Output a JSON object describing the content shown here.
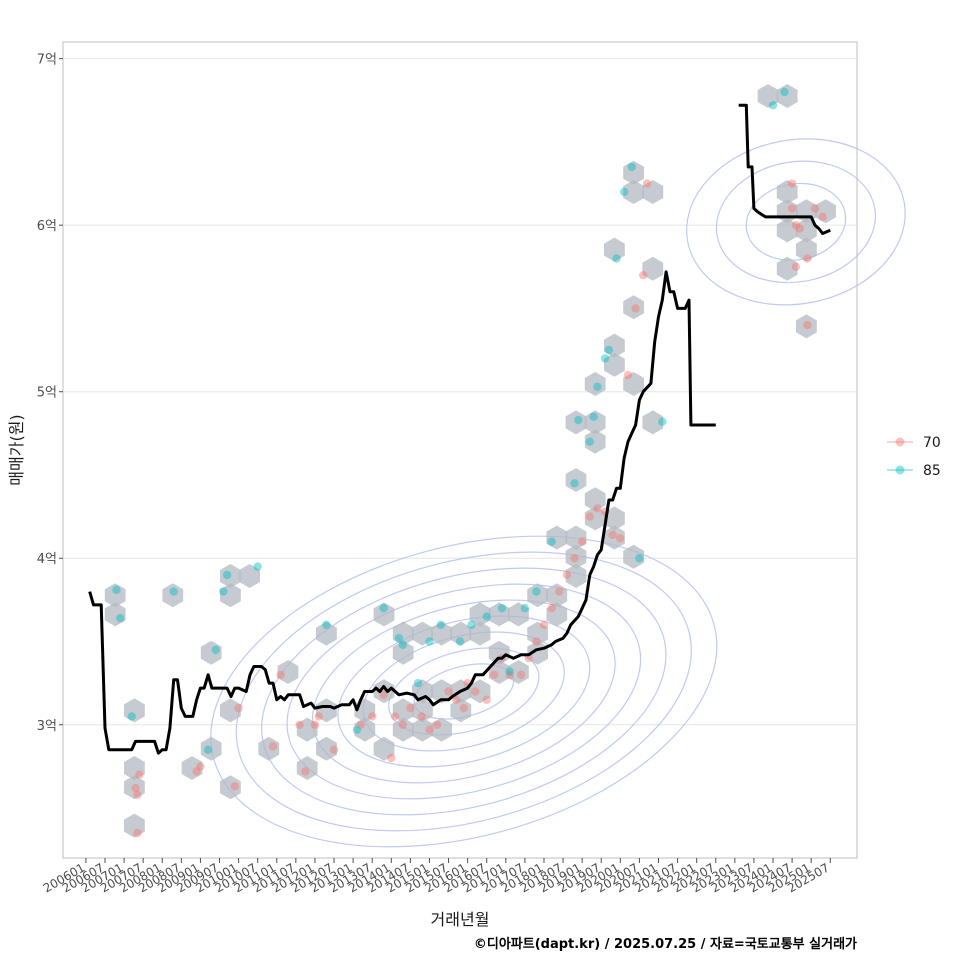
{
  "chart_data": {
    "type": "scatter",
    "xlabel": "거래년월",
    "ylabel": "매매가(원)",
    "caption": "©디아파트(dapt.kr) / 2025.07.25 / 자료=국토교통부 실거래가",
    "y_ticks": [
      {
        "value": 3,
        "label": "3억"
      },
      {
        "value": 4,
        "label": "4억"
      },
      {
        "value": 5,
        "label": "5억"
      },
      {
        "value": 6,
        "label": "6억"
      },
      {
        "value": 7,
        "label": "7억"
      }
    ],
    "x_ticks": [
      "200601",
      "200607",
      "200701",
      "200707",
      "200801",
      "200807",
      "200901",
      "200907",
      "201001",
      "201007",
      "201101",
      "201107",
      "201201",
      "201207",
      "201301",
      "201307",
      "201401",
      "201407",
      "201501",
      "201507",
      "201601",
      "201607",
      "201701",
      "201707",
      "201801",
      "201807",
      "201901",
      "201907",
      "202001",
      "202007",
      "202101",
      "202107",
      "202201",
      "202207",
      "202301",
      "202307",
      "202401",
      "202407",
      "202501",
      "202507"
    ],
    "xlim": [
      2005.4,
      2026.2
    ],
    "ylim": [
      2.2,
      7.1
    ],
    "grid": true,
    "legend": {
      "position": "right",
      "entries": [
        {
          "label": "70",
          "color": "#F8766D"
        },
        {
          "label": "85",
          "color": "#00BFC4"
        }
      ]
    },
    "series": [
      {
        "name": "70",
        "color": "#F8766D",
        "points": [
          [
            2007.3,
            2.62
          ],
          [
            2007.35,
            2.58
          ],
          [
            2007.4,
            2.7
          ],
          [
            2007.35,
            2.35
          ],
          [
            2008.9,
            2.72
          ],
          [
            2009.0,
            2.75
          ],
          [
            2009.9,
            2.63
          ],
          [
            2010.0,
            3.1
          ],
          [
            2010.9,
            2.87
          ],
          [
            2011.1,
            3.3
          ],
          [
            2011.6,
            3.0
          ],
          [
            2011.75,
            2.72
          ],
          [
            2012.0,
            3.0
          ],
          [
            2012.1,
            3.05
          ],
          [
            2012.5,
            2.85
          ],
          [
            2013.2,
            3.0
          ],
          [
            2013.5,
            3.05
          ],
          [
            2013.8,
            3.18
          ],
          [
            2014.0,
            2.8
          ],
          [
            2014.1,
            3.05
          ],
          [
            2014.3,
            3.0
          ],
          [
            2014.5,
            3.1
          ],
          [
            2014.8,
            3.05
          ],
          [
            2015.0,
            2.97
          ],
          [
            2015.2,
            3.0
          ],
          [
            2015.5,
            3.2
          ],
          [
            2015.7,
            3.15
          ],
          [
            2015.9,
            3.1
          ],
          [
            2016.0,
            3.25
          ],
          [
            2016.2,
            3.2
          ],
          [
            2016.5,
            3.15
          ],
          [
            2016.7,
            3.3
          ],
          [
            2016.9,
            3.4
          ],
          [
            2017.1,
            3.3
          ],
          [
            2017.4,
            3.3
          ],
          [
            2017.6,
            3.4
          ],
          [
            2017.8,
            3.5
          ],
          [
            2018.0,
            3.6
          ],
          [
            2018.2,
            3.7
          ],
          [
            2018.4,
            3.8
          ],
          [
            2018.6,
            3.9
          ],
          [
            2018.8,
            4.0
          ],
          [
            2019.0,
            4.1
          ],
          [
            2019.2,
            4.25
          ],
          [
            2019.4,
            4.3
          ],
          [
            2019.6,
            4.28
          ],
          [
            2019.8,
            4.14
          ],
          [
            2020.0,
            4.12
          ],
          [
            2020.2,
            5.1
          ],
          [
            2020.4,
            5.5
          ],
          [
            2020.6,
            5.7
          ],
          [
            2020.7,
            6.25
          ],
          [
            2024.5,
            6.25
          ],
          [
            2024.5,
            6.1
          ],
          [
            2024.6,
            5.75
          ],
          [
            2024.9,
            5.8
          ],
          [
            2025.1,
            6.1
          ],
          [
            2025.3,
            6.05
          ],
          [
            2024.6,
            6.0
          ],
          [
            2024.7,
            5.98
          ],
          [
            2024.9,
            5.4
          ]
        ]
      },
      {
        "name": "85",
        "color": "#00BFC4",
        "points": [
          [
            2006.8,
            3.81
          ],
          [
            2006.9,
            3.64
          ],
          [
            2007.2,
            3.05
          ],
          [
            2008.3,
            3.8
          ],
          [
            2009.2,
            2.85
          ],
          [
            2009.4,
            3.45
          ],
          [
            2009.6,
            3.8
          ],
          [
            2009.7,
            3.9
          ],
          [
            2010.5,
            3.95
          ],
          [
            2012.3,
            3.6
          ],
          [
            2013.1,
            2.97
          ],
          [
            2013.8,
            3.7
          ],
          [
            2014.2,
            3.52
          ],
          [
            2014.3,
            3.48
          ],
          [
            2014.7,
            3.25
          ],
          [
            2015.0,
            3.5
          ],
          [
            2015.3,
            3.6
          ],
          [
            2015.8,
            3.5
          ],
          [
            2016.1,
            3.6
          ],
          [
            2016.5,
            3.65
          ],
          [
            2016.9,
            3.7
          ],
          [
            2017.1,
            3.32
          ],
          [
            2017.5,
            3.7
          ],
          [
            2017.8,
            3.8
          ],
          [
            2018.2,
            4.1
          ],
          [
            2018.8,
            4.45
          ],
          [
            2018.9,
            4.83
          ],
          [
            2019.2,
            4.7
          ],
          [
            2019.3,
            4.85
          ],
          [
            2019.4,
            5.03
          ],
          [
            2019.6,
            5.2
          ],
          [
            2019.7,
            5.25
          ],
          [
            2019.9,
            5.8
          ],
          [
            2020.1,
            6.2
          ],
          [
            2020.3,
            6.35
          ],
          [
            2020.5,
            4.0
          ],
          [
            2021.1,
            4.82
          ],
          [
            2024.0,
            6.72
          ],
          [
            2024.3,
            6.8
          ]
        ]
      },
      {
        "name": "",
        "type": "line",
        "color": "#000000",
        "points": [
          [
            2006.1,
            3.8
          ],
          [
            2006.2,
            3.72
          ],
          [
            2006.4,
            3.72
          ],
          [
            2006.5,
            2.98
          ],
          [
            2006.6,
            2.85
          ],
          [
            2006.8,
            2.85
          ],
          [
            2007.0,
            2.85
          ],
          [
            2007.2,
            2.85
          ],
          [
            2007.3,
            2.9
          ],
          [
            2007.6,
            2.9
          ],
          [
            2007.8,
            2.9
          ],
          [
            2007.9,
            2.83
          ],
          [
            2008.0,
            2.85
          ],
          [
            2008.1,
            2.85
          ],
          [
            2008.2,
            2.98
          ],
          [
            2008.3,
            3.27
          ],
          [
            2008.4,
            3.27
          ],
          [
            2008.5,
            3.1
          ],
          [
            2008.6,
            3.05
          ],
          [
            2008.8,
            3.05
          ],
          [
            2008.9,
            3.15
          ],
          [
            2009.0,
            3.22
          ],
          [
            2009.1,
            3.22
          ],
          [
            2009.2,
            3.3
          ],
          [
            2009.3,
            3.22
          ],
          [
            2009.5,
            3.22
          ],
          [
            2009.7,
            3.22
          ],
          [
            2009.8,
            3.17
          ],
          [
            2009.9,
            3.22
          ],
          [
            2010.0,
            3.22
          ],
          [
            2010.2,
            3.2
          ],
          [
            2010.3,
            3.3
          ],
          [
            2010.4,
            3.35
          ],
          [
            2010.6,
            3.35
          ],
          [
            2010.7,
            3.33
          ],
          [
            2010.8,
            3.25
          ],
          [
            2010.9,
            3.25
          ],
          [
            2011.0,
            3.15
          ],
          [
            2011.1,
            3.17
          ],
          [
            2011.2,
            3.15
          ],
          [
            2011.3,
            3.18
          ],
          [
            2011.5,
            3.18
          ],
          [
            2011.6,
            3.18
          ],
          [
            2011.7,
            3.11
          ],
          [
            2011.8,
            3.12
          ],
          [
            2011.9,
            3.13
          ],
          [
            2012.0,
            3.1
          ],
          [
            2012.2,
            3.11
          ],
          [
            2012.4,
            3.11
          ],
          [
            2012.5,
            3.1
          ],
          [
            2012.7,
            3.12
          ],
          [
            2012.9,
            3.12
          ],
          [
            2013.0,
            3.15
          ],
          [
            2013.1,
            3.09
          ],
          [
            2013.2,
            3.15
          ],
          [
            2013.3,
            3.2
          ],
          [
            2013.5,
            3.2
          ],
          [
            2013.6,
            3.22
          ],
          [
            2013.7,
            3.2
          ],
          [
            2013.8,
            3.23
          ],
          [
            2013.9,
            3.2
          ],
          [
            2014.0,
            3.22
          ],
          [
            2014.2,
            3.18
          ],
          [
            2014.4,
            3.19
          ],
          [
            2014.6,
            3.18
          ],
          [
            2014.7,
            3.15
          ],
          [
            2014.9,
            3.17
          ],
          [
            2015.0,
            3.15
          ],
          [
            2015.1,
            3.12
          ],
          [
            2015.3,
            3.15
          ],
          [
            2015.5,
            3.15
          ],
          [
            2015.6,
            3.17
          ],
          [
            2015.8,
            3.2
          ],
          [
            2016.0,
            3.22
          ],
          [
            2016.1,
            3.25
          ],
          [
            2016.2,
            3.3
          ],
          [
            2016.4,
            3.3
          ],
          [
            2016.6,
            3.35
          ],
          [
            2016.8,
            3.4
          ],
          [
            2016.9,
            3.4
          ],
          [
            2017.0,
            3.42
          ],
          [
            2017.2,
            3.4
          ],
          [
            2017.4,
            3.42
          ],
          [
            2017.6,
            3.42
          ],
          [
            2017.8,
            3.45
          ],
          [
            2018.0,
            3.46
          ],
          [
            2018.1,
            3.47
          ],
          [
            2018.2,
            3.48
          ],
          [
            2018.3,
            3.5
          ],
          [
            2018.5,
            3.52
          ],
          [
            2018.6,
            3.55
          ],
          [
            2018.7,
            3.6
          ],
          [
            2018.9,
            3.65
          ],
          [
            2019.0,
            3.7
          ],
          [
            2019.1,
            3.75
          ],
          [
            2019.2,
            3.9
          ],
          [
            2019.3,
            3.95
          ],
          [
            2019.4,
            4.02
          ],
          [
            2019.5,
            4.05
          ],
          [
            2019.6,
            4.2
          ],
          [
            2019.7,
            4.35
          ],
          [
            2019.8,
            4.35
          ],
          [
            2019.9,
            4.42
          ],
          [
            2020.0,
            4.42
          ],
          [
            2020.1,
            4.6
          ],
          [
            2020.2,
            4.7
          ],
          [
            2020.3,
            4.75
          ],
          [
            2020.4,
            4.8
          ],
          [
            2020.5,
            4.95
          ],
          [
            2020.6,
            5.0
          ],
          [
            2020.8,
            5.05
          ],
          [
            2020.9,
            5.3
          ],
          [
            2021.0,
            5.45
          ],
          [
            2021.1,
            5.55
          ],
          [
            2021.2,
            5.72
          ],
          [
            2021.3,
            5.6
          ],
          [
            2021.4,
            5.6
          ],
          [
            2021.5,
            5.5
          ],
          [
            2021.7,
            5.5
          ],
          [
            2021.8,
            5.55
          ],
          [
            2021.85,
            4.8
          ],
          [
            2021.95,
            4.8
          ],
          [
            2022.5,
            4.8
          ]
        ]
      },
      {
        "name": "",
        "type": "line",
        "color": "#000000",
        "points": [
          [
            2023.1,
            6.72
          ],
          [
            2023.3,
            6.72
          ],
          [
            2023.35,
            6.35
          ],
          [
            2023.45,
            6.35
          ],
          [
            2023.5,
            6.1
          ],
          [
            2023.6,
            6.08
          ],
          [
            2023.8,
            6.05
          ],
          [
            2024.0,
            6.05
          ],
          [
            2024.2,
            6.05
          ],
          [
            2024.4,
            6.05
          ],
          [
            2024.6,
            6.05
          ],
          [
            2024.8,
            6.05
          ],
          [
            2025.0,
            6.05
          ],
          [
            2025.1,
            6.0
          ],
          [
            2025.2,
            5.98
          ],
          [
            2025.3,
            5.95
          ],
          [
            2025.5,
            5.97
          ]
        ]
      }
    ]
  }
}
